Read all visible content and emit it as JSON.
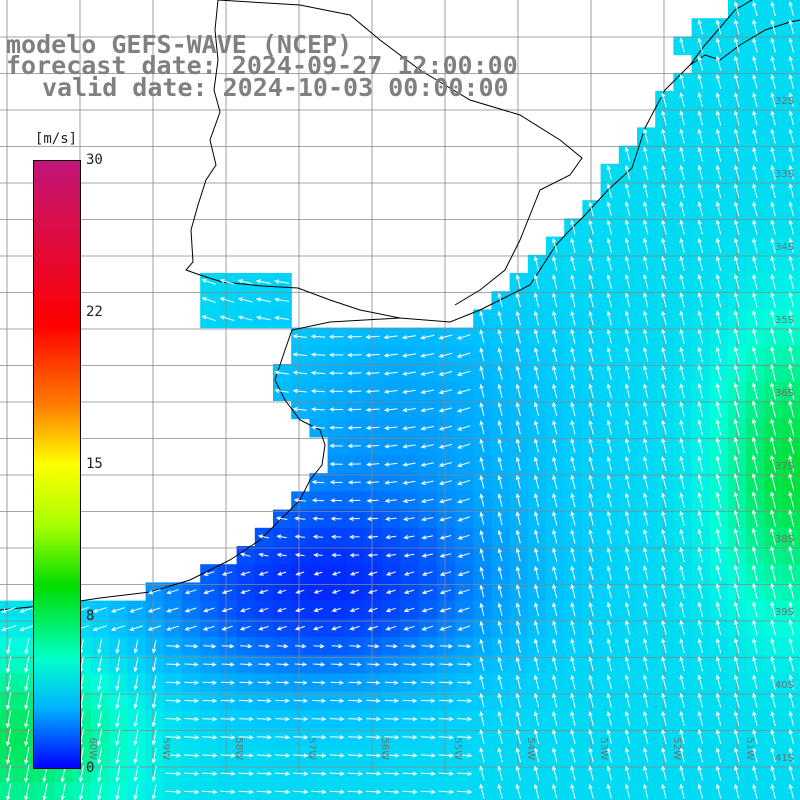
{
  "title": {
    "line1": "modelo GEFS-WAVE (NCEP)",
    "line2": "forecast date: 2024-09-27 12:00:00",
    "line3": "valid date: 2024-10-03 00:00:00"
  },
  "colorbar": {
    "unit": "[m/s]",
    "ticks": [
      "30",
      "22",
      "15",
      "8",
      "0"
    ],
    "min": 0,
    "max": 30
  },
  "lat_labels": [
    "32S",
    "33S",
    "34S",
    "35S",
    "36S",
    "37S",
    "38S",
    "39S",
    "40S",
    "41S"
  ],
  "lon_labels": [
    "60W",
    "59W",
    "58W",
    "57W",
    "56W",
    "55W",
    "54W",
    "53W",
    "52W",
    "51W"
  ],
  "colors": {
    "land": "#ffffff",
    "coast": "#000000",
    "grid": "#888888",
    "arrow": "#ffffff",
    "title": "#808080"
  }
}
